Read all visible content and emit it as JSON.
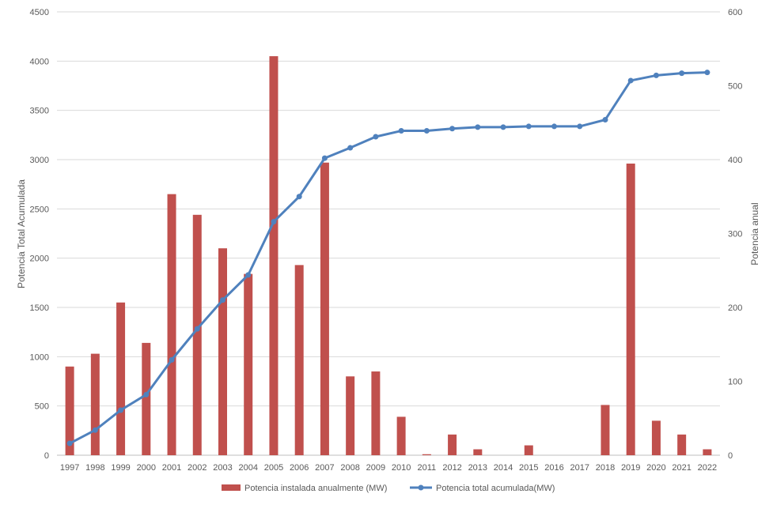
{
  "chart_data": {
    "type": "bar+line",
    "title": "",
    "categories": [
      "1997",
      "1998",
      "1999",
      "2000",
      "2001",
      "2002",
      "2003",
      "2004",
      "2005",
      "2006",
      "2007",
      "2008",
      "2009",
      "2010",
      "2011",
      "2012",
      "2013",
      "2014",
      "2015",
      "2016",
      "2017",
      "2018",
      "2019",
      "2020",
      "2021",
      "2022"
    ],
    "series": [
      {
        "name": "Potencia instalada anualmente (MW)",
        "type": "bar",
        "axis": "left",
        "color": "#C0504D",
        "values": [
          900,
          1030,
          1550,
          1140,
          2650,
          2440,
          2100,
          1840,
          4050,
          1930,
          2970,
          800,
          850,
          390,
          10,
          210,
          60,
          0,
          100,
          0,
          0,
          510,
          2960,
          350,
          210,
          60
        ]
      },
      {
        "name": "Potencia total acumulada(MW)",
        "type": "line",
        "axis": "right",
        "color": "#4F81BD",
        "values": [
          16,
          34,
          61,
          82,
          129,
          171,
          210,
          244,
          316,
          350,
          402,
          416,
          431,
          439,
          439,
          442,
          444,
          444,
          445,
          445,
          445,
          454,
          507,
          514,
          517,
          518
        ]
      }
    ],
    "ylabel": "Potencia Total Acumulada",
    "y2label": "Potencia anual",
    "ylim": [
      0,
      4500
    ],
    "y2lim": [
      0,
      600
    ],
    "yticks": [
      "0",
      "500",
      "1000",
      "1500",
      "2000",
      "2500",
      "3000",
      "3500",
      "4000",
      "4500"
    ],
    "y2ticks": [
      "0",
      "100",
      "200",
      "300",
      "400",
      "500",
      "600"
    ],
    "grid": true,
    "legend_position": "bottom"
  }
}
